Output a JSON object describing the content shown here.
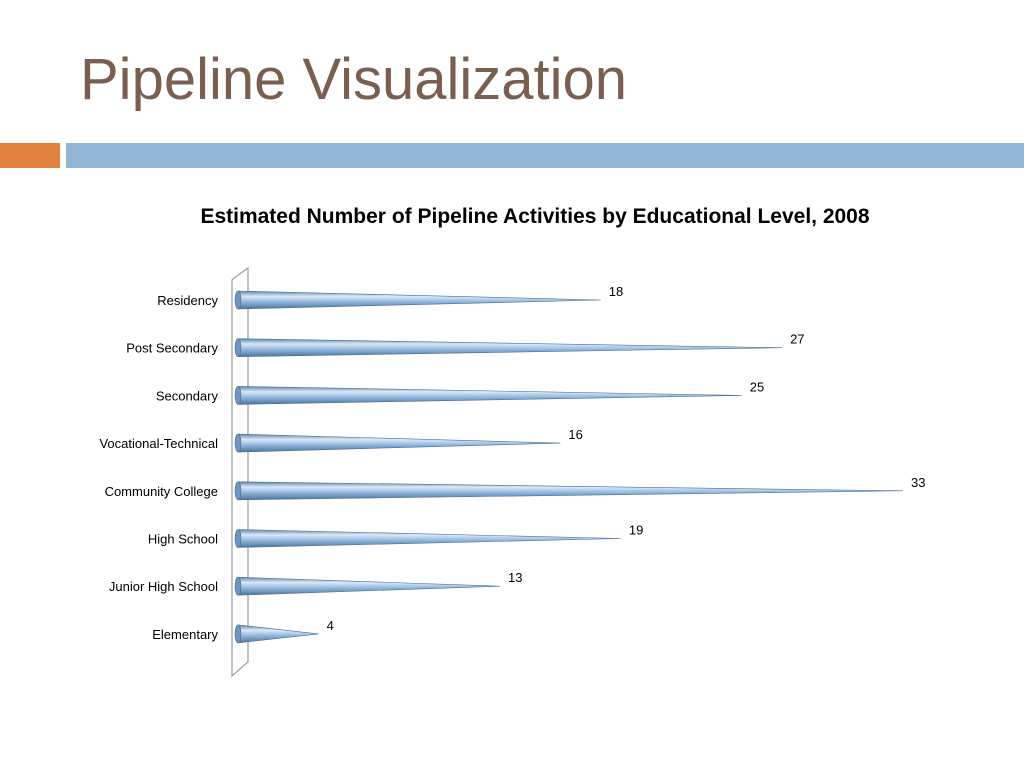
{
  "slide": {
    "title": "Pipeline Visualization",
    "accent_colors": {
      "orange": "#e0823d",
      "blue": "#93b6d6",
      "title": "#7a5e4f"
    }
  },
  "chart_data": {
    "type": "bar",
    "orientation": "horizontal",
    "style": "3d-cone",
    "title": "Estimated Number of Pipeline Activities by Educational Level, 2008",
    "categories": [
      "Residency",
      "Post Secondary",
      "Secondary",
      "Vocational-Technical",
      "Community College",
      "High School",
      "Junior High School",
      "Elementary"
    ],
    "values": [
      18,
      27,
      25,
      16,
      33,
      19,
      13,
      4
    ],
    "data_labels": true,
    "xlim": [
      0,
      33
    ],
    "grid": false,
    "legend": "none",
    "bar_color": "#8fb4da"
  }
}
